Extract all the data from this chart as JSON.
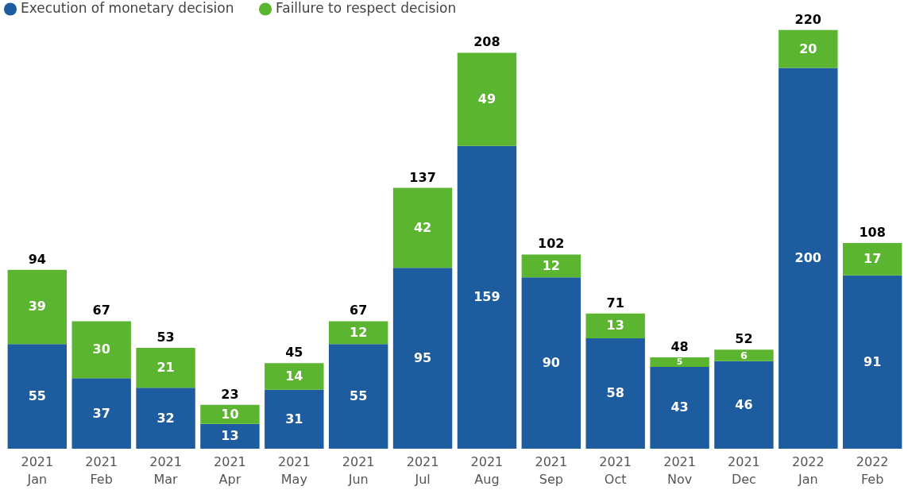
{
  "chart_data": {
    "type": "bar",
    "stacked": true,
    "data_labels": true,
    "legend": "top left",
    "grid": false,
    "categories": [
      "2021 Jan",
      "2021 Feb",
      "2021 Mar",
      "2021 Apr",
      "2021 May",
      "2021 Jun",
      "2021 Jul",
      "2021 Aug",
      "2021 Sep",
      "2021 Oct",
      "2021 Nov",
      "2021 Dec",
      "2022 Jan",
      "2022 Feb"
    ],
    "series": [
      {
        "name": "Execution of monetary decision",
        "color": "#1d5c9e",
        "values": [
          55,
          37,
          32,
          13,
          31,
          55,
          95,
          159,
          90,
          58,
          43,
          46,
          200,
          91
        ]
      },
      {
        "name": "Faillure to respect decision",
        "color": "#5cb531",
        "values": [
          39,
          30,
          21,
          10,
          14,
          12,
          42,
          49,
          12,
          13,
          5,
          6,
          20,
          17
        ]
      }
    ],
    "totals": [
      "94",
      "67",
      "53",
      "23",
      "45",
      "67",
      "137",
      "208",
      "102",
      "71",
      "48",
      "52",
      "220",
      "108"
    ]
  }
}
